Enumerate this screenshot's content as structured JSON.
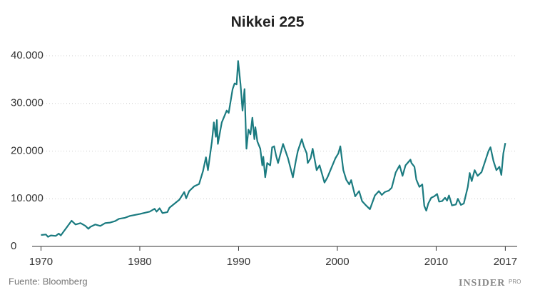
{
  "chart_data": {
    "type": "line",
    "title": "Nikkei 225",
    "x": [
      1970,
      1970.5,
      1970.7,
      1971,
      1971.5,
      1971.8,
      1972,
      1973.1,
      1973.5,
      1974,
      1974.5,
      1974.8,
      1975,
      1975.5,
      1976,
      1976.5,
      1977,
      1977.5,
      1977.9,
      1978.5,
      1979,
      1980,
      1981,
      1981.5,
      1981.7,
      1982,
      1982.3,
      1982.8,
      1983,
      1984,
      1984.5,
      1984.7,
      1985,
      1985.5,
      1986,
      1986.4,
      1986.7,
      1986.9,
      1987.3,
      1987.5,
      1987.7,
      1987.8,
      1987.9,
      1988.3,
      1988.8,
      1989,
      1989.4,
      1989.6,
      1989.8,
      1989.95,
      1990.2,
      1990.4,
      1990.6,
      1990.75,
      1990.8,
      1991,
      1991.2,
      1991.4,
      1991.6,
      1991.7,
      1991.9,
      1992.2,
      1992.4,
      1992.5,
      1992.7,
      1992.9,
      1993.2,
      1993.4,
      1993.6,
      1993.8,
      1994,
      1994.5,
      1995,
      1995.4,
      1995.5,
      1995.8,
      1996,
      1996.4,
      1996.6,
      1996.9,
      1997,
      1997.3,
      1997.5,
      1997.9,
      1998.2,
      1998.7,
      1999,
      1999.4,
      1999.8,
      2000.1,
      2000.3,
      2000.6,
      2000.9,
      2001.2,
      2001.4,
      2001.8,
      2002.2,
      2002.5,
      2002.9,
      2003.3,
      2003.8,
      2004.2,
      2004.5,
      2004.8,
      2005.2,
      2005.5,
      2005.9,
      2006.3,
      2006.6,
      2006.9,
      2007.4,
      2007.5,
      2007.8,
      2008,
      2008.3,
      2008.6,
      2008.8,
      2009,
      2009.2,
      2009.5,
      2009.8,
      2010.1,
      2010.3,
      2010.6,
      2010.9,
      2011.1,
      2011.3,
      2011.6,
      2012,
      2012.2,
      2012.5,
      2012.8,
      2013.2,
      2013.4,
      2013.6,
      2013.9,
      2014.2,
      2014.6,
      2014.9,
      2015.3,
      2015.5,
      2015.8,
      2016.1,
      2016.4,
      2016.6,
      2016.8,
      2017
    ],
    "series": [
      {
        "name": "Nikkei 225",
        "color": "#1b7b80",
        "values": [
          2400,
          2500,
          2000,
          2300,
          2200,
          2700,
          2300,
          5400,
          4600,
          4900,
          4300,
          3700,
          4100,
          4600,
          4300,
          4900,
          5000,
          5300,
          5800,
          6000,
          6400,
          6800,
          7300,
          7900,
          7300,
          8000,
          7000,
          7200,
          8100,
          9800,
          11400,
          10100,
          11600,
          12600,
          13100,
          15800,
          18700,
          16000,
          22000,
          26000,
          23000,
          26500,
          21500,
          26000,
          28500,
          28000,
          33000,
          34200,
          34000,
          38900,
          34000,
          28500,
          33000,
          23500,
          20500,
          24500,
          23500,
          27000,
          22500,
          25000,
          22000,
          20500,
          17000,
          18800,
          14500,
          17500,
          17000,
          20800,
          21000,
          19000,
          17500,
          21500,
          18500,
          15300,
          14500,
          18000,
          20000,
          22500,
          21000,
          19500,
          17500,
          18500,
          20500,
          16000,
          17000,
          13400,
          14500,
          16500,
          18500,
          19500,
          21000,
          16000,
          14000,
          13000,
          13900,
          10500,
          11600,
          9500,
          8600,
          7800,
          10700,
          11600,
          10800,
          11400,
          11700,
          12300,
          15500,
          17000,
          14800,
          17000,
          18200,
          17500,
          16700,
          14000,
          12500,
          13000,
          8500,
          7500,
          9000,
          10200,
          10500,
          11000,
          9400,
          9500,
          10200,
          9600,
          10700,
          8600,
          8800,
          10000,
          8700,
          9000,
          12500,
          15400,
          13700,
          16000,
          14800,
          15600,
          17500,
          20000,
          20800,
          17900,
          16000,
          16700,
          15000,
          19500,
          21700
        ]
      }
    ],
    "xlim": [
      1969.1,
      2018.2
    ],
    "xticks": [
      1970,
      1980,
      1990,
      2000,
      2010,
      2017
    ],
    "ylim": [
      0,
      40000
    ],
    "yticks": [
      0,
      {
        "value": 10000,
        "label": "10.000"
      },
      {
        "value": 20000,
        "label": "20.000"
      },
      {
        "value": 30000,
        "label": "30.000"
      },
      {
        "value": 40000,
        "label": "40.000"
      }
    ],
    "grid": true,
    "source": "Fuente: Bloomberg",
    "brand": "INSIDER",
    "brand_suffix": "PRO"
  }
}
